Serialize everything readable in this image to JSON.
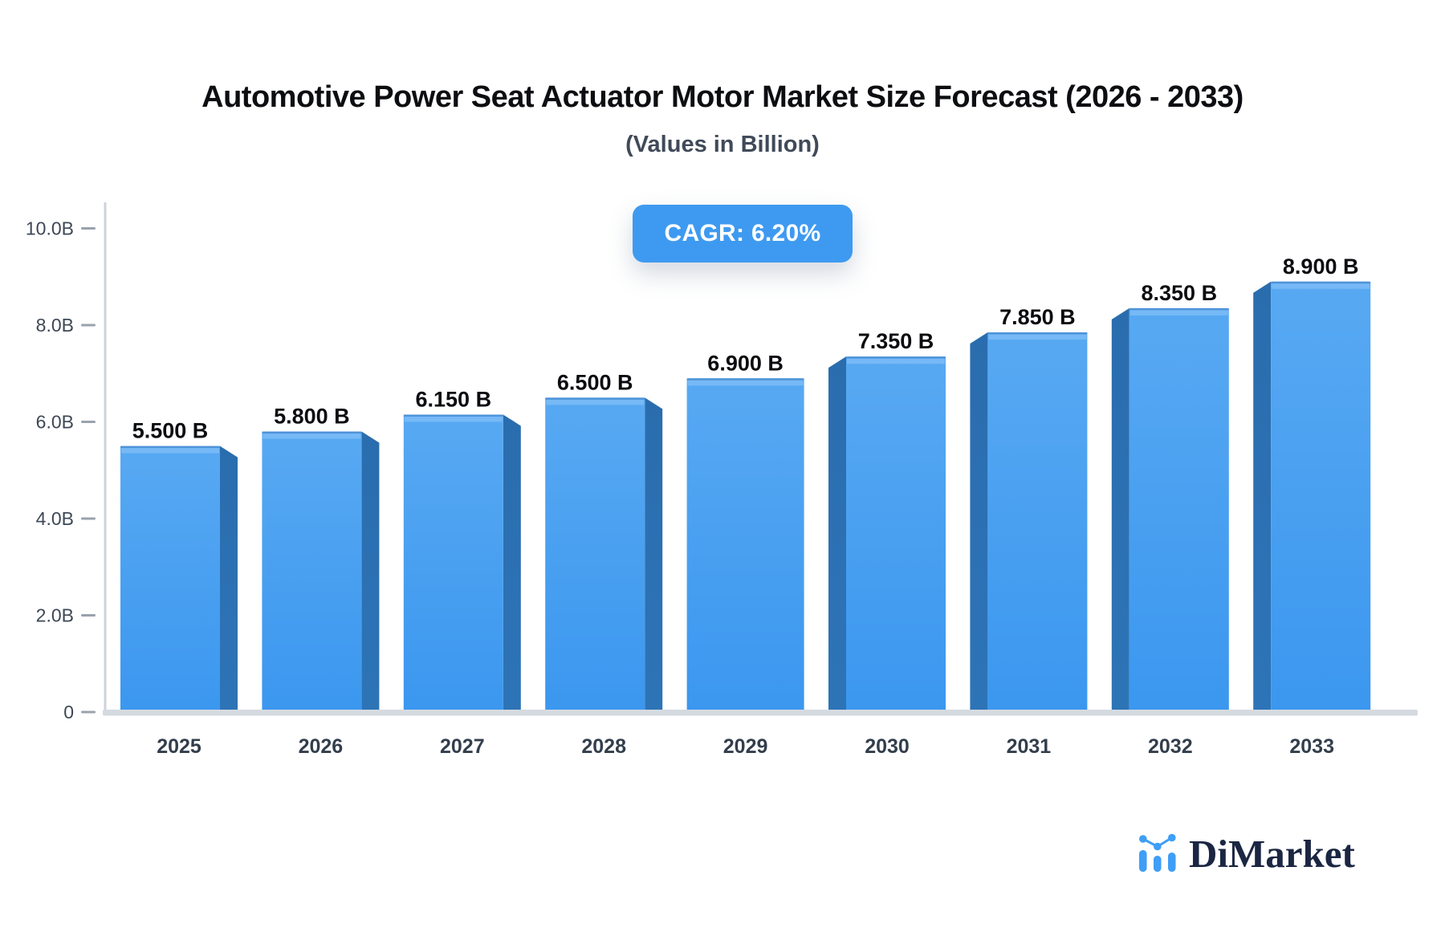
{
  "header": {
    "title": "Automotive Power Seat Actuator Motor Market Size Forecast (2026 - 2033)",
    "subtitle": "(Values in Billion)"
  },
  "badge": {
    "label": "CAGR: 6.20%",
    "bg": "#3E9AF0",
    "text_color": "#FFFFFF"
  },
  "chart_data": {
    "type": "bar",
    "title": "Automotive Power Seat Actuator Motor Market Size Forecast (2026 - 2033)",
    "subtitle": "(Values in Billion)",
    "categories": [
      "2025",
      "2026",
      "2027",
      "2028",
      "2029",
      "2030",
      "2031",
      "2032",
      "2033"
    ],
    "values": [
      5.5,
      5.8,
      6.15,
      6.5,
      6.9,
      7.35,
      7.85,
      8.35,
      8.9
    ],
    "value_labels": [
      "5.500 B",
      "5.800 B",
      "6.150 B",
      "6.500 B",
      "6.900 B",
      "7.350 B",
      "7.850 B",
      "8.350 B",
      "8.900 B"
    ],
    "xlabel": "",
    "ylabel": "",
    "ylim": [
      0,
      10
    ],
    "yticks": {
      "values": [
        0,
        2,
        4,
        6,
        8,
        10
      ],
      "labels": [
        "0",
        "2.0B",
        "4.0B",
        "6.0B",
        "8.0B",
        "10.0B"
      ]
    },
    "grid": false,
    "legend": "none",
    "bar_style": "3d-extruded",
    "colors": {
      "bar_face_top": "#58A9F2",
      "bar_face_bottom": "#3B97EF",
      "bar_side": "#2D74B7",
      "bar_top_edge": "#4C8FD4",
      "bar_highlight": "#7ABAF6",
      "axis_line": "#CDD3DA",
      "baseline": "#D5DAE0",
      "tick_dash": "#99A2AD",
      "tick_label": "#3E4856",
      "year_label": "#333E4C",
      "value_label": "#0B0C10"
    }
  },
  "logo": {
    "text": "DiMarket",
    "icon": "mini-bar-line-chart-icon",
    "icon_color": "#3F9EF5",
    "text_color": "#1B2642"
  }
}
